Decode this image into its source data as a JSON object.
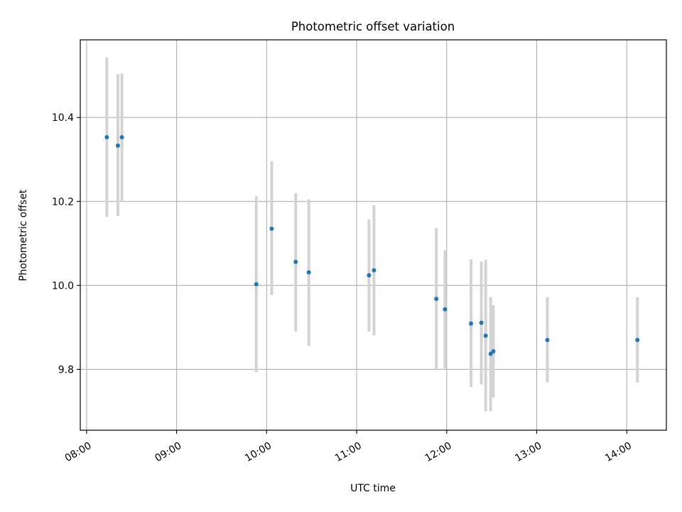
{
  "chart_data": {
    "type": "scatter",
    "title": "Photometric offset variation",
    "xlabel": "UTC time",
    "ylabel": "Photometric offset",
    "grid": true,
    "legend": "none",
    "x_unit": "hours UTC",
    "xlim": [
      7.93,
      14.44
    ],
    "ylim": [
      9.655,
      10.585
    ],
    "xticks": [
      {
        "value": 8,
        "label": "08:00"
      },
      {
        "value": 9,
        "label": "09:00"
      },
      {
        "value": 10,
        "label": "10:00"
      },
      {
        "value": 11,
        "label": "11:00"
      },
      {
        "value": 12,
        "label": "12:00"
      },
      {
        "value": 13,
        "label": "13:00"
      },
      {
        "value": 14,
        "label": "14:00"
      }
    ],
    "yticks": [
      {
        "value": 9.8,
        "label": "9.8"
      },
      {
        "value": 10.0,
        "label": "10.0"
      },
      {
        "value": 10.2,
        "label": "10.2"
      },
      {
        "value": 10.4,
        "label": "10.4"
      }
    ],
    "colors": {
      "points": "#1f77b4",
      "errorbars": "#d3d3d3",
      "grid": "#b0b0b0",
      "axes": "#000000"
    },
    "points": [
      {
        "time": "08:13",
        "x": 8.225,
        "y": 10.353,
        "ylo": 10.163,
        "yhi": 10.543
      },
      {
        "time": "08:21",
        "x": 8.348,
        "y": 10.333,
        "ylo": 10.165,
        "yhi": 10.503
      },
      {
        "time": "08:23",
        "x": 8.392,
        "y": 10.353,
        "ylo": 10.2,
        "yhi": 10.505
      },
      {
        "time": "09:53",
        "x": 9.885,
        "y": 10.003,
        "ylo": 9.793,
        "yhi": 10.212
      },
      {
        "time": "10:03",
        "x": 10.056,
        "y": 10.135,
        "ylo": 9.977,
        "yhi": 10.296
      },
      {
        "time": "10:19",
        "x": 10.323,
        "y": 10.056,
        "ylo": 9.89,
        "yhi": 10.22
      },
      {
        "time": "10:28",
        "x": 10.468,
        "y": 10.031,
        "ylo": 9.856,
        "yhi": 10.205
      },
      {
        "time": "11:08",
        "x": 11.137,
        "y": 10.024,
        "ylo": 9.89,
        "yhi": 10.157
      },
      {
        "time": "11:11",
        "x": 11.192,
        "y": 10.036,
        "ylo": 9.881,
        "yhi": 10.191
      },
      {
        "time": "11:53",
        "x": 11.885,
        "y": 9.968,
        "ylo": 9.8,
        "yhi": 10.136
      },
      {
        "time": "11:59",
        "x": 11.981,
        "y": 9.943,
        "ylo": 9.802,
        "yhi": 10.084
      },
      {
        "time": "12:16",
        "x": 12.27,
        "y": 9.909,
        "ylo": 9.758,
        "yhi": 10.062
      },
      {
        "time": "12:23",
        "x": 12.385,
        "y": 9.911,
        "ylo": 9.764,
        "yhi": 10.057
      },
      {
        "time": "12:26",
        "x": 12.433,
        "y": 9.88,
        "ylo": 9.7,
        "yhi": 10.061
      },
      {
        "time": "12:29",
        "x": 12.488,
        "y": 9.837,
        "ylo": 9.7,
        "yhi": 9.972
      },
      {
        "time": "12:31",
        "x": 12.518,
        "y": 9.843,
        "ylo": 9.733,
        "yhi": 9.953
      },
      {
        "time": "13:07",
        "x": 13.118,
        "y": 9.87,
        "ylo": 9.769,
        "yhi": 9.972
      },
      {
        "time": "14:07",
        "x": 14.118,
        "y": 9.87,
        "ylo": 9.769,
        "yhi": 9.972
      }
    ]
  }
}
